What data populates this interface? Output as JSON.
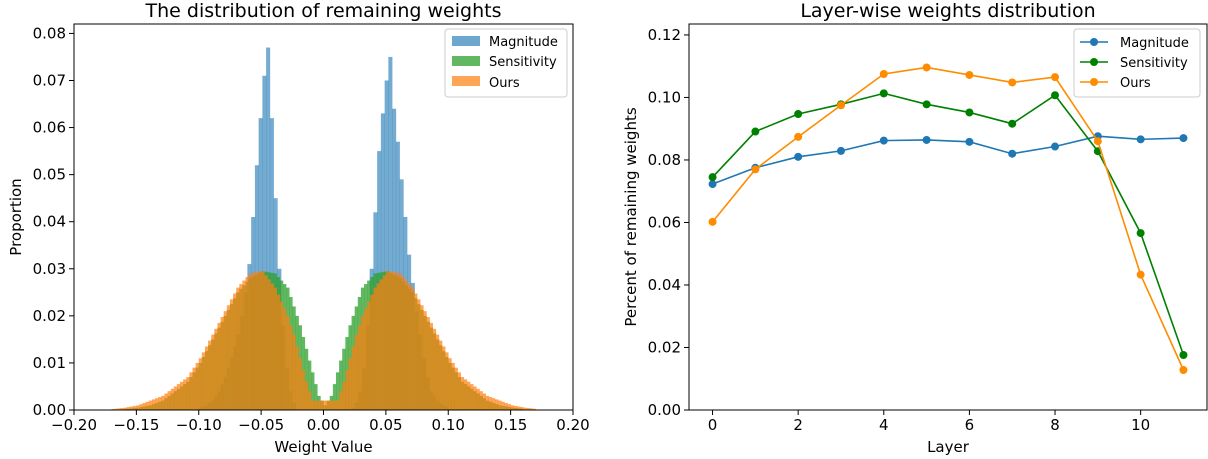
{
  "chart_data": [
    {
      "type": "histogram",
      "title": "The distribution of remaining weights",
      "xlabel": "Weight Value",
      "ylabel": "Proportion",
      "xlim": [
        -0.2,
        0.2
      ],
      "ylim": [
        0,
        0.082
      ],
      "xticks": [
        "−0.20",
        "−0.15",
        "−0.10",
        "−0.05",
        "0.00",
        "0.05",
        "0.10",
        "0.15",
        "0.20"
      ],
      "yticks": [
        "0.00",
        "0.01",
        "0.02",
        "0.03",
        "0.04",
        "0.05",
        "0.06",
        "0.07",
        "0.08"
      ],
      "legend_position": "top-right",
      "series": [
        {
          "name": "Magnitude",
          "color": "#1f77b4",
          "points": [
            [
              -0.1,
              0.0005
            ],
            [
              -0.095,
              0.001
            ],
            [
              -0.09,
              0.002
            ],
            [
              -0.085,
              0.004
            ],
            [
              -0.08,
              0.007
            ],
            [
              -0.075,
              0.011
            ],
            [
              -0.07,
              0.016
            ],
            [
              -0.067,
              0.02
            ],
            [
              -0.064,
              0.025
            ],
            [
              -0.061,
              0.031
            ],
            [
              -0.058,
              0.041
            ],
            [
              -0.055,
              0.052
            ],
            [
              -0.052,
              0.062
            ],
            [
              -0.049,
              0.071
            ],
            [
              -0.046,
              0.077
            ],
            [
              -0.043,
              0.062
            ],
            [
              -0.04,
              0.045
            ],
            [
              -0.037,
              0.03
            ],
            [
              -0.034,
              0.018
            ],
            [
              -0.031,
              0.009
            ],
            [
              -0.028,
              0.004
            ],
            [
              -0.025,
              0.0015
            ],
            [
              -0.022,
              0.0005
            ],
            [
              0.022,
              0.0005
            ],
            [
              0.025,
              0.0015
            ],
            [
              0.028,
              0.004
            ],
            [
              0.031,
              0.009
            ],
            [
              0.034,
              0.018
            ],
            [
              0.037,
              0.03
            ],
            [
              0.04,
              0.042
            ],
            [
              0.043,
              0.055
            ],
            [
              0.046,
              0.063
            ],
            [
              0.049,
              0.07
            ],
            [
              0.052,
              0.075
            ],
            [
              0.055,
              0.064
            ],
            [
              0.058,
              0.057
            ],
            [
              0.061,
              0.049
            ],
            [
              0.064,
              0.041
            ],
            [
              0.067,
              0.033
            ],
            [
              0.07,
              0.027
            ],
            [
              0.073,
              0.021
            ],
            [
              0.076,
              0.016
            ],
            [
              0.079,
              0.011
            ],
            [
              0.082,
              0.007
            ],
            [
              0.085,
              0.004
            ],
            [
              0.09,
              0.002
            ],
            [
              0.095,
              0.001
            ],
            [
              0.1,
              0.0005
            ]
          ]
        },
        {
          "name": "Sensitivity",
          "color": "#2ca02c",
          "points": [
            [
              -0.16,
              0.0002
            ],
            [
              -0.15,
              0.0005
            ],
            [
              -0.14,
              0.001
            ],
            [
              -0.13,
              0.002
            ],
            [
              -0.12,
              0.004
            ],
            [
              -0.11,
              0.006
            ],
            [
              -0.1,
              0.01
            ],
            [
              -0.09,
              0.015
            ],
            [
              -0.08,
              0.02
            ],
            [
              -0.07,
              0.025
            ],
            [
              -0.06,
              0.028
            ],
            [
              -0.05,
              0.0295
            ],
            [
              -0.04,
              0.029
            ],
            [
              -0.03,
              0.026
            ],
            [
              -0.025,
              0.022
            ],
            [
              -0.02,
              0.018
            ],
            [
              -0.015,
              0.013
            ],
            [
              -0.01,
              0.008
            ],
            [
              -0.005,
              0.003
            ],
            [
              0.0,
              0.001
            ],
            [
              0.005,
              0.003
            ],
            [
              0.01,
              0.008
            ],
            [
              0.015,
              0.013
            ],
            [
              0.02,
              0.018
            ],
            [
              0.025,
              0.022
            ],
            [
              0.03,
              0.026
            ],
            [
              0.04,
              0.029
            ],
            [
              0.05,
              0.0295
            ],
            [
              0.06,
              0.028
            ],
            [
              0.07,
              0.025
            ],
            [
              0.08,
              0.02
            ],
            [
              0.09,
              0.015
            ],
            [
              0.1,
              0.01
            ],
            [
              0.11,
              0.006
            ],
            [
              0.12,
              0.004
            ],
            [
              0.13,
              0.002
            ],
            [
              0.14,
              0.001
            ],
            [
              0.15,
              0.0005
            ],
            [
              0.16,
              0.0002
            ]
          ]
        },
        {
          "name": "Ours",
          "color": "#ff7f0e",
          "points": [
            [
              -0.17,
              0.0002
            ],
            [
              -0.16,
              0.0005
            ],
            [
              -0.15,
              0.001
            ],
            [
              -0.14,
              0.002
            ],
            [
              -0.13,
              0.003
            ],
            [
              -0.12,
              0.005
            ],
            [
              -0.11,
              0.007
            ],
            [
              -0.1,
              0.011
            ],
            [
              -0.09,
              0.016
            ],
            [
              -0.08,
              0.021
            ],
            [
              -0.07,
              0.026
            ],
            [
              -0.06,
              0.029
            ],
            [
              -0.05,
              0.0295
            ],
            [
              -0.04,
              0.026
            ],
            [
              -0.03,
              0.02
            ],
            [
              -0.025,
              0.016
            ],
            [
              -0.02,
              0.011
            ],
            [
              -0.015,
              0.006
            ],
            [
              -0.01,
              0.002
            ],
            [
              0.01,
              0.002
            ],
            [
              0.015,
              0.006
            ],
            [
              0.02,
              0.011
            ],
            [
              0.025,
              0.016
            ],
            [
              0.03,
              0.02
            ],
            [
              0.04,
              0.026
            ],
            [
              0.05,
              0.0295
            ],
            [
              0.06,
              0.029
            ],
            [
              0.07,
              0.026
            ],
            [
              0.08,
              0.021
            ],
            [
              0.09,
              0.016
            ],
            [
              0.1,
              0.011
            ],
            [
              0.11,
              0.007
            ],
            [
              0.12,
              0.005
            ],
            [
              0.13,
              0.003
            ],
            [
              0.14,
              0.002
            ],
            [
              0.15,
              0.001
            ],
            [
              0.16,
              0.0005
            ],
            [
              0.17,
              0.0002
            ]
          ]
        }
      ]
    },
    {
      "type": "line",
      "title": "Layer-wise weights distribution",
      "xlabel": "Layer",
      "ylabel": "Percent of remaining weights",
      "xlim": [
        -0.55,
        11.55
      ],
      "ylim": [
        0,
        0.1235
      ],
      "xticks": [
        "0",
        "2",
        "4",
        "6",
        "8",
        "10"
      ],
      "yticks": [
        "0.00",
        "0.02",
        "0.04",
        "0.06",
        "0.08",
        "0.10",
        "0.12"
      ],
      "legend_position": "top-right",
      "x": [
        0,
        1,
        2,
        3,
        4,
        5,
        6,
        7,
        8,
        9,
        10,
        11
      ],
      "series": [
        {
          "name": "Magnitude",
          "color": "#1f77b4",
          "values": [
            0.0723,
            0.0775,
            0.081,
            0.0829,
            0.0862,
            0.0864,
            0.0858,
            0.082,
            0.0843,
            0.0876,
            0.0866,
            0.087
          ]
        },
        {
          "name": "Sensitivity",
          "color": "#008000",
          "values": [
            0.0745,
            0.0891,
            0.0947,
            0.0978,
            0.1013,
            0.0978,
            0.0952,
            0.0916,
            0.1007,
            0.0828,
            0.0566,
            0.0176
          ]
        },
        {
          "name": "Ours",
          "color": "#ff8c00",
          "values": [
            0.0602,
            0.077,
            0.0874,
            0.0975,
            0.1075,
            0.1096,
            0.1072,
            0.1048,
            0.1065,
            0.086,
            0.0433,
            0.0128
          ]
        }
      ]
    }
  ]
}
